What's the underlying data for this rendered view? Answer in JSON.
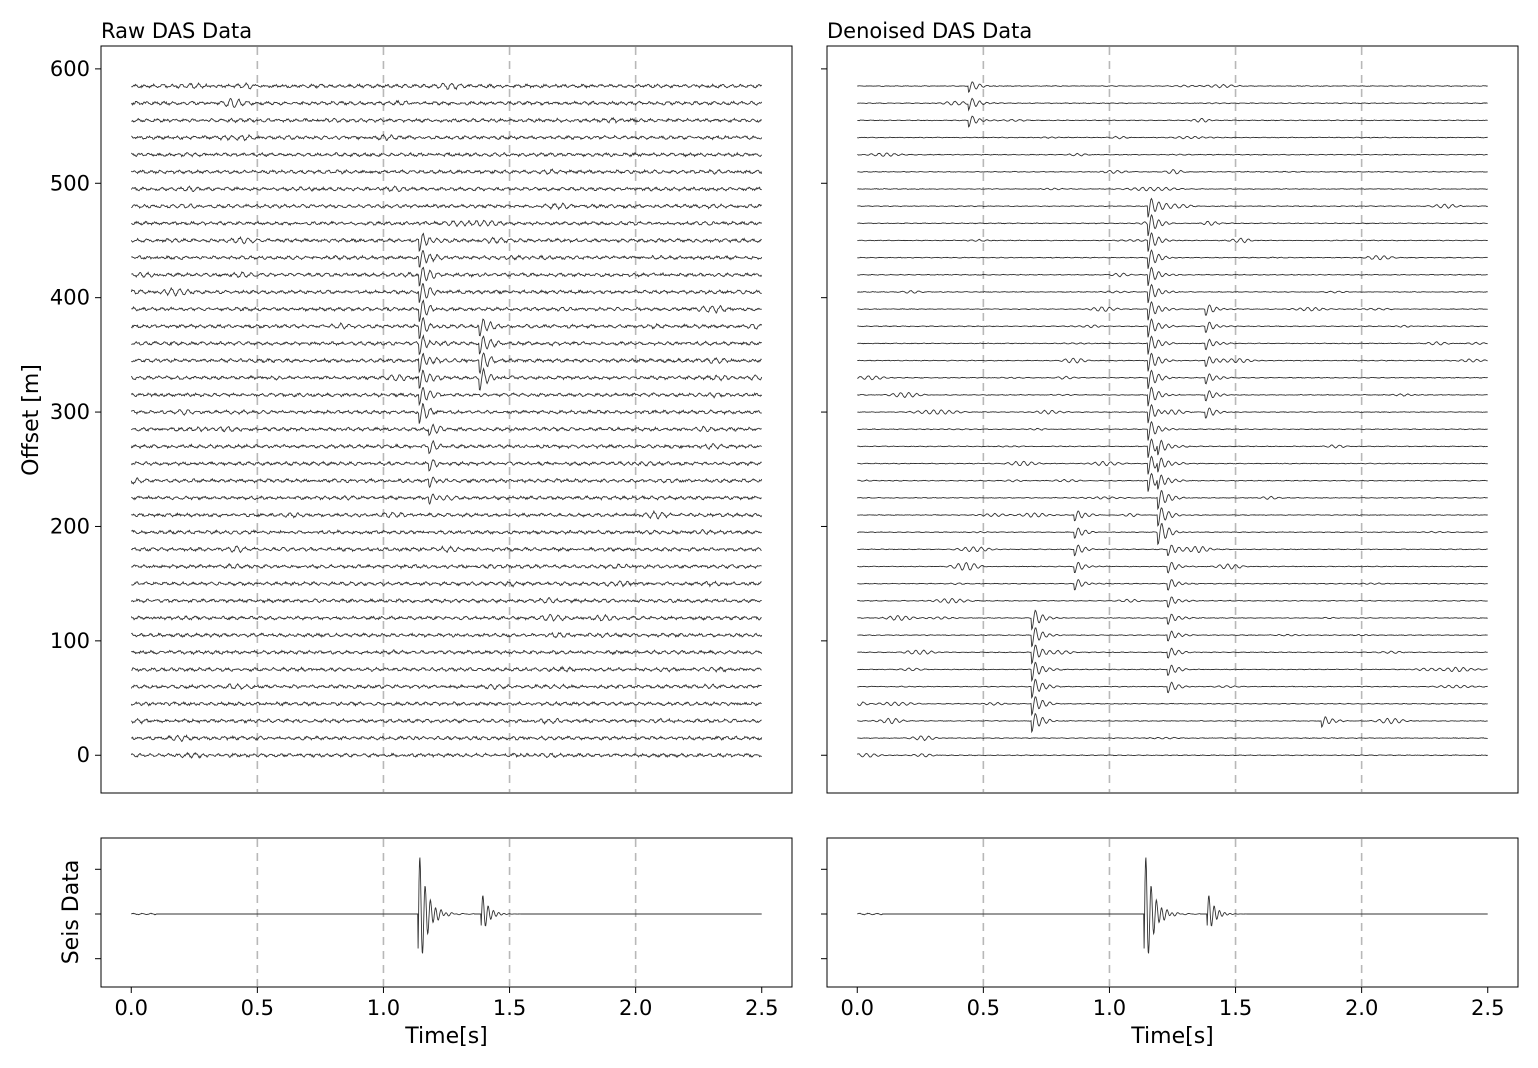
{
  "chart_data": [
    {
      "panel": "raw-das",
      "type": "line",
      "title": "Raw DAS Data",
      "xlabel": "",
      "ylabel": "Offset [m]",
      "xlim": [
        -0.12,
        2.62
      ],
      "ylim": [
        -33,
        620
      ],
      "y_ticks": [
        0,
        100,
        200,
        300,
        400,
        500,
        600
      ],
      "vlines": [
        0.5,
        1.0,
        1.5,
        2.0
      ],
      "trace_offsets_m": [
        0,
        15,
        30,
        45,
        60,
        75,
        90,
        105,
        120,
        135,
        150,
        165,
        180,
        195,
        210,
        225,
        240,
        255,
        270,
        285,
        300,
        315,
        330,
        345,
        360,
        375,
        390,
        405,
        420,
        435,
        450,
        465,
        480,
        495,
        510,
        525,
        540,
        555,
        570,
        585
      ],
      "trace_time_range_s": [
        0.0,
        2.5
      ],
      "events": [
        {
          "time_s": 1.15,
          "offset_range_m": [
            290,
            460
          ],
          "amplitude": "strong"
        },
        {
          "time_s": 1.39,
          "offset_range_m": [
            330,
            380
          ],
          "amplitude": "strong"
        },
        {
          "time_s": 1.19,
          "offset_range_m": [
            225,
            290
          ],
          "amplitude": "moderate"
        }
      ],
      "noise_level": "high"
    },
    {
      "panel": "denoised-das",
      "type": "line",
      "title": "Denoised DAS Data",
      "xlabel": "",
      "ylabel": "",
      "xlim": [
        -0.12,
        2.62
      ],
      "ylim": [
        -33,
        620
      ],
      "vlines": [
        0.5,
        1.0,
        1.5,
        2.0
      ],
      "trace_offsets_m": [
        0,
        15,
        30,
        45,
        60,
        75,
        90,
        105,
        120,
        135,
        150,
        165,
        180,
        195,
        210,
        225,
        240,
        255,
        270,
        285,
        300,
        315,
        330,
        345,
        360,
        375,
        390,
        405,
        420,
        435,
        450,
        465,
        480,
        495,
        510,
        525,
        540,
        555,
        570,
        585
      ],
      "trace_time_range_s": [
        0.0,
        2.5
      ],
      "events": [
        {
          "time_s": 1.16,
          "offset_range_m": [
            240,
            480
          ],
          "amplitude": "strong"
        },
        {
          "time_s": 1.2,
          "offset_range_m": [
            195,
            270
          ],
          "amplitude": "strong"
        },
        {
          "time_s": 1.39,
          "offset_range_m": [
            300,
            400
          ],
          "amplitude": "moderate"
        },
        {
          "time_s": 1.24,
          "offset_range_m": [
            60,
            180
          ],
          "amplitude": "moderate"
        },
        {
          "time_s": 0.7,
          "offset_range_m": [
            30,
            120
          ],
          "amplitude": "strong"
        },
        {
          "time_s": 0.87,
          "offset_range_m": [
            140,
            215
          ],
          "amplitude": "moderate"
        },
        {
          "time_s": 0.45,
          "offset_range_m": [
            555,
            585
          ],
          "amplitude": "moderate"
        },
        {
          "time_s": 1.85,
          "offset_range_m": [
            28,
            35
          ],
          "amplitude": "moderate"
        }
      ],
      "noise_level": "low"
    },
    {
      "panel": "raw-seis",
      "type": "line",
      "title": "",
      "xlabel": "Time[s]",
      "ylabel": "Seis Data",
      "xlim": [
        -0.12,
        2.62
      ],
      "x_ticks": [
        0.0,
        0.5,
        1.0,
        1.5,
        2.0,
        2.5
      ],
      "x_tick_labels": [
        "0.0",
        "0.5",
        "1.0",
        "1.5",
        "2.0",
        "2.5"
      ],
      "vlines": [
        0.5,
        1.0,
        1.5,
        2.0
      ],
      "events": [
        {
          "time_s": 1.14,
          "amplitude": "strong"
        },
        {
          "time_s": 1.39,
          "amplitude": "moderate"
        }
      ]
    },
    {
      "panel": "denoised-seis",
      "type": "line",
      "title": "",
      "xlabel": "Time[s]",
      "ylabel": "",
      "xlim": [
        -0.12,
        2.62
      ],
      "x_ticks": [
        0.0,
        0.5,
        1.0,
        1.5,
        2.0,
        2.5
      ],
      "x_tick_labels": [
        "0.0",
        "0.5",
        "1.0",
        "1.5",
        "2.0",
        "2.5"
      ],
      "vlines": [
        0.5,
        1.0,
        1.5,
        2.0
      ],
      "events": [
        {
          "time_s": 1.14,
          "amplitude": "strong"
        },
        {
          "time_s": 1.39,
          "amplitude": "moderate"
        }
      ]
    }
  ]
}
